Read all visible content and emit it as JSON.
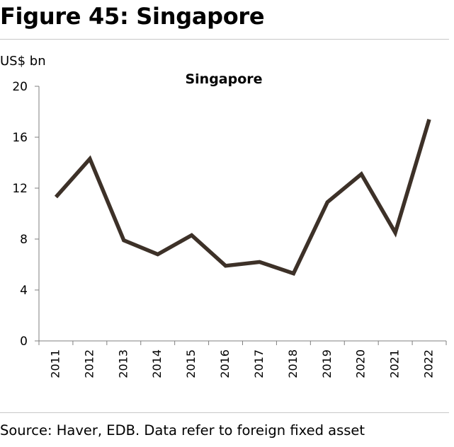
{
  "figure": {
    "title": "Figure 45: Singapore",
    "unit_label": "US$ bn",
    "source": "Source: Haver, EDB. Data refer to foreign fixed asset"
  },
  "chart_data": {
    "type": "line",
    "title": "Singapore",
    "xlabel": "",
    "ylabel": "US$ bn",
    "categories": [
      "2011",
      "2012",
      "2013",
      "2014",
      "2015",
      "2016",
      "2017",
      "2018",
      "2019",
      "2020",
      "2021",
      "2022"
    ],
    "series": [
      {
        "values": [
          11.3,
          14.3,
          7.9,
          6.8,
          8.3,
          5.9,
          6.2,
          5.3,
          10.9,
          13.1,
          8.5,
          17.4
        ]
      }
    ],
    "ylim": [
      0,
      20
    ],
    "yticks": [
      0,
      4,
      8,
      12,
      16,
      20
    ],
    "grid": false,
    "legend": "none",
    "colors": {
      "line": "#3d3128",
      "axis": "#7f7f7f"
    }
  }
}
